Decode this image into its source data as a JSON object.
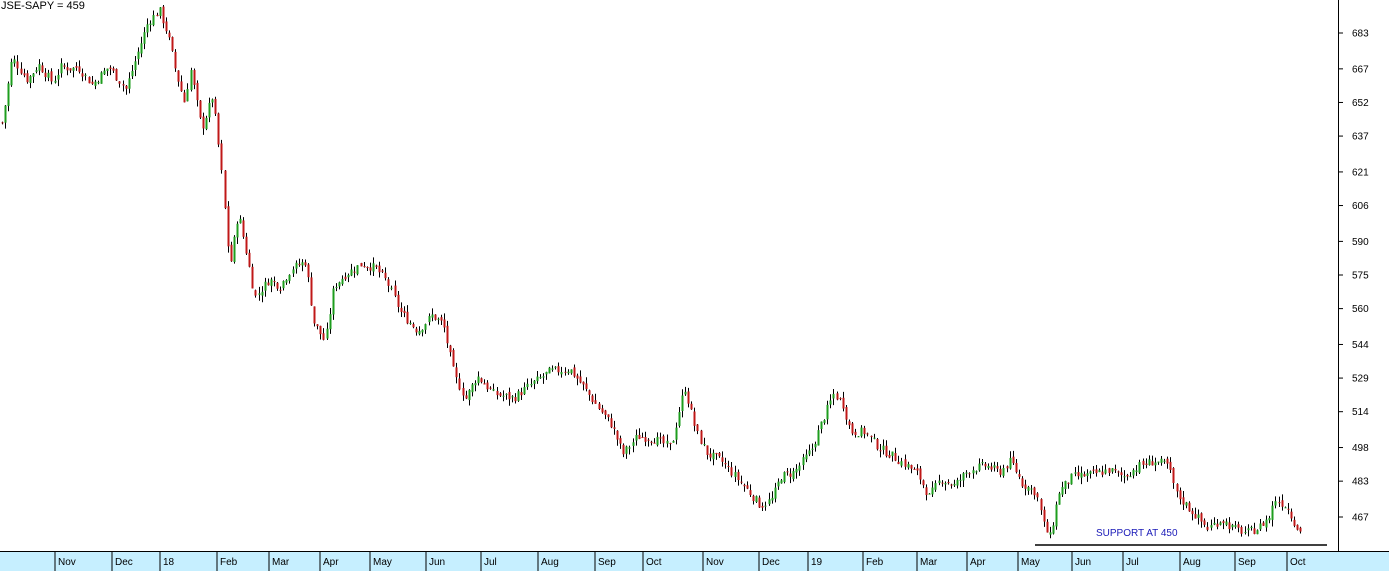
{
  "chart_data": {
    "type": "candlestick",
    "title": "JSE-SAPY = 459",
    "y_ticks": [
      683,
      667,
      652,
      637,
      621,
      606,
      590,
      575,
      560,
      544,
      529,
      514,
      498,
      483,
      467
    ],
    "ylim": [
      452,
      698
    ],
    "x_tick_labels": [
      "Nov",
      "Dec",
      "18",
      "Feb",
      "Mar",
      "Apr",
      "May",
      "Jun",
      "Jul",
      "Aug",
      "Sep",
      "Oct",
      "Nov",
      "Dec",
      "19",
      "Feb",
      "Mar",
      "Apr",
      "May",
      "Jun",
      "Jul",
      "Aug",
      "Sep",
      "Oct"
    ],
    "grid": false,
    "legend": "none",
    "colors": {
      "up": "#1e9e1e",
      "down": "#c01818",
      "wick": "#000000",
      "axis_band": "#c6efff",
      "annotation": "#1a1ab8"
    },
    "close_path": [
      {
        "x": 0,
        "y": 643
      },
      {
        "x": 0.05,
        "y": 650
      },
      {
        "x": 0.18,
        "y": 672
      },
      {
        "x": 0.45,
        "y": 662
      },
      {
        "x": 0.65,
        "y": 669
      },
      {
        "x": 0.9,
        "y": 661
      },
      {
        "x": 1.05,
        "y": 668
      },
      {
        "x": 1.25,
        "y": 667
      },
      {
        "x": 1.35,
        "y": 668
      },
      {
        "x": 1.6,
        "y": 660
      },
      {
        "x": 1.9,
        "y": 668
      },
      {
        "x": 2.2,
        "y": 658
      },
      {
        "x": 2.4,
        "y": 673
      },
      {
        "x": 2.6,
        "y": 688
      },
      {
        "x": 2.8,
        "y": 693
      },
      {
        "x": 2.95,
        "y": 682
      },
      {
        "x": 3.1,
        "y": 665
      },
      {
        "x": 3.25,
        "y": 652
      },
      {
        "x": 3.35,
        "y": 667
      },
      {
        "x": 3.55,
        "y": 640
      },
      {
        "x": 3.75,
        "y": 655
      },
      {
        "x": 3.9,
        "y": 622
      },
      {
        "x": 4.05,
        "y": 578
      },
      {
        "x": 4.2,
        "y": 603
      },
      {
        "x": 4.35,
        "y": 585
      },
      {
        "x": 4.5,
        "y": 565
      },
      {
        "x": 4.75,
        "y": 573
      },
      {
        "x": 4.95,
        "y": 570
      },
      {
        "x": 5.15,
        "y": 578
      },
      {
        "x": 5.4,
        "y": 581
      },
      {
        "x": 5.55,
        "y": 554
      },
      {
        "x": 5.75,
        "y": 545
      },
      {
        "x": 5.9,
        "y": 570
      },
      {
        "x": 6.1,
        "y": 575
      },
      {
        "x": 6.4,
        "y": 580
      },
      {
        "x": 6.65,
        "y": 578
      },
      {
        "x": 6.85,
        "y": 572
      },
      {
        "x": 7.1,
        "y": 558
      },
      {
        "x": 7.4,
        "y": 550
      },
      {
        "x": 7.65,
        "y": 557
      },
      {
        "x": 7.85,
        "y": 553
      },
      {
        "x": 8.05,
        "y": 530
      },
      {
        "x": 8.25,
        "y": 520
      },
      {
        "x": 8.45,
        "y": 530
      },
      {
        "x": 8.75,
        "y": 522
      },
      {
        "x": 9.1,
        "y": 520
      },
      {
        "x": 9.4,
        "y": 526
      },
      {
        "x": 9.75,
        "y": 532
      },
      {
        "x": 10.1,
        "y": 533
      },
      {
        "x": 10.35,
        "y": 525
      },
      {
        "x": 10.6,
        "y": 516
      },
      {
        "x": 10.85,
        "y": 508
      },
      {
        "x": 11.05,
        "y": 495
      },
      {
        "x": 11.3,
        "y": 503
      },
      {
        "x": 11.6,
        "y": 502
      },
      {
        "x": 11.9,
        "y": 498
      },
      {
        "x": 12.05,
        "y": 515
      },
      {
        "x": 12.15,
        "y": 525
      },
      {
        "x": 12.35,
        "y": 505
      },
      {
        "x": 12.55,
        "y": 495
      },
      {
        "x": 12.8,
        "y": 492
      },
      {
        "x": 13.05,
        "y": 485
      },
      {
        "x": 13.3,
        "y": 478
      },
      {
        "x": 13.5,
        "y": 472
      },
      {
        "x": 13.7,
        "y": 475
      },
      {
        "x": 13.85,
        "y": 485
      },
      {
        "x": 14.1,
        "y": 487
      },
      {
        "x": 14.4,
        "y": 497
      },
      {
        "x": 14.6,
        "y": 510
      },
      {
        "x": 14.8,
        "y": 522
      },
      {
        "x": 14.95,
        "y": 518
      },
      {
        "x": 15.1,
        "y": 505
      },
      {
        "x": 15.35,
        "y": 505
      },
      {
        "x": 15.6,
        "y": 498
      },
      {
        "x": 15.8,
        "y": 495
      },
      {
        "x": 16.1,
        "y": 490
      },
      {
        "x": 16.3,
        "y": 486
      },
      {
        "x": 16.5,
        "y": 476
      },
      {
        "x": 16.7,
        "y": 484
      },
      {
        "x": 16.95,
        "y": 481
      },
      {
        "x": 17.2,
        "y": 488
      },
      {
        "x": 17.5,
        "y": 490
      },
      {
        "x": 17.75,
        "y": 487
      },
      {
        "x": 17.95,
        "y": 492
      },
      {
        "x": 18.15,
        "y": 482
      },
      {
        "x": 18.4,
        "y": 478
      },
      {
        "x": 18.55,
        "y": 462
      },
      {
        "x": 18.65,
        "y": 458
      },
      {
        "x": 18.8,
        "y": 478
      },
      {
        "x": 19.05,
        "y": 485
      },
      {
        "x": 19.4,
        "y": 486
      },
      {
        "x": 19.7,
        "y": 488
      },
      {
        "x": 19.95,
        "y": 485
      },
      {
        "x": 20.25,
        "y": 490
      },
      {
        "x": 20.5,
        "y": 492
      },
      {
        "x": 20.75,
        "y": 490
      },
      {
        "x": 20.9,
        "y": 477
      },
      {
        "x": 21.15,
        "y": 470
      },
      {
        "x": 21.45,
        "y": 462
      },
      {
        "x": 21.7,
        "y": 466
      },
      {
        "x": 21.9,
        "y": 462
      },
      {
        "x": 22.15,
        "y": 460
      },
      {
        "x": 22.35,
        "y": 462
      },
      {
        "x": 22.55,
        "y": 467
      },
      {
        "x": 22.65,
        "y": 475
      },
      {
        "x": 22.85,
        "y": 472
      },
      {
        "x": 23.05,
        "y": 462
      },
      {
        "x": 23.15,
        "y": 459
      }
    ],
    "annotations": [
      {
        "text": "SUPPORT AT 450",
        "y": 458
      }
    ]
  }
}
